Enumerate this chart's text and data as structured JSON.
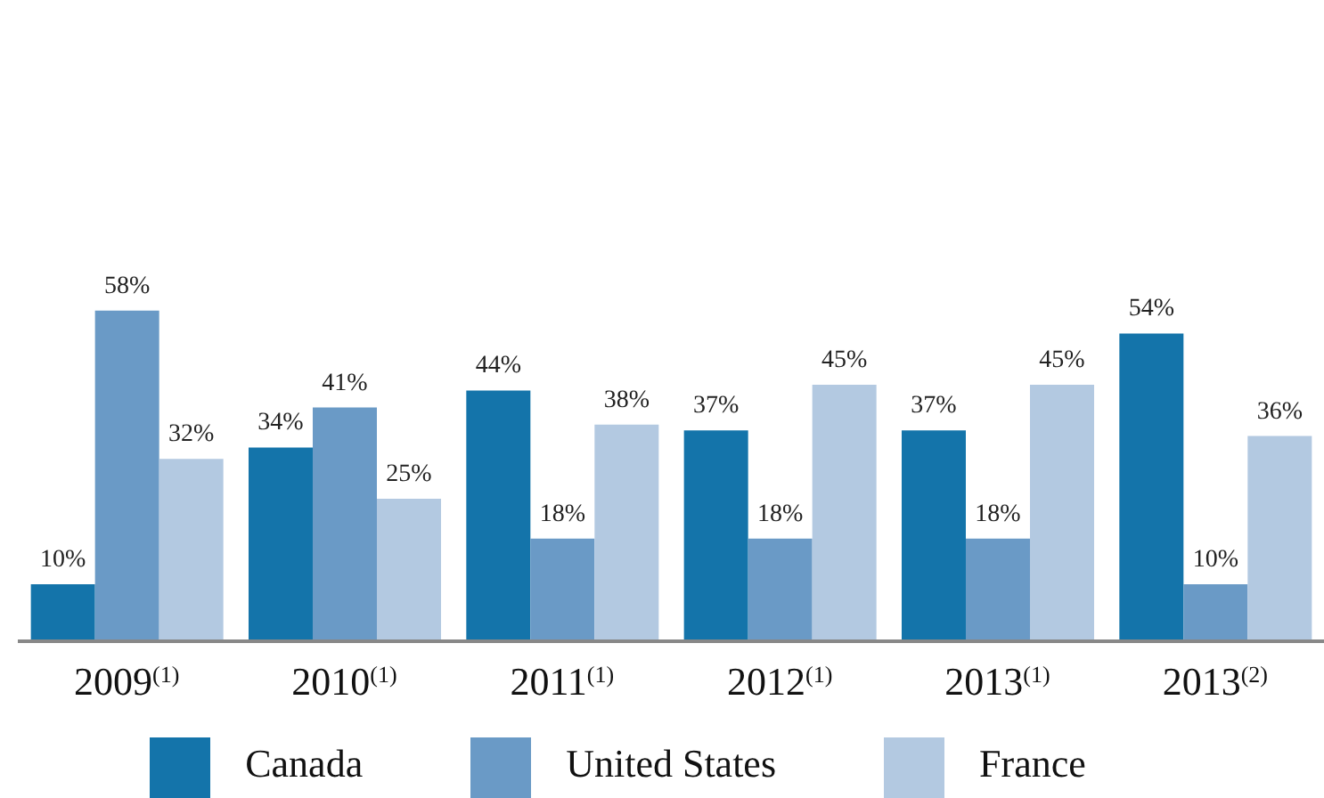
{
  "chart_data": {
    "type": "bar",
    "categories": [
      "2009$^{(1)}$",
      "2010$^{(1)}$",
      "2011$^{(1)}$",
      "2012$^{(1)}$",
      "2013$^{(1)}$",
      "2013$^{(2)}$"
    ],
    "series": [
      {
        "name": "Canada",
        "color": "#1474aa",
        "values": [
          10,
          34,
          44,
          37,
          37,
          54
        ],
        "value_labels": [
          "10%",
          "34%",
          "44%",
          "37%",
          "37%",
          "54%"
        ]
      },
      {
        "name": "United States",
        "color": "#6a9ac6",
        "values": [
          58,
          41,
          18,
          18,
          18,
          10
        ],
        "value_labels": [
          "58%",
          "41%",
          "18%",
          "18%",
          "18%",
          "10%"
        ]
      },
      {
        "name": "France",
        "color": "#b3c9e1",
        "values": [
          32,
          25,
          38,
          45,
          45,
          36
        ],
        "value_labels": [
          "32%",
          "25%",
          "38%",
          "45%",
          "45%",
          "36%"
        ]
      }
    ],
    "tick_labels": "x",
    "grid": false,
    "legend": "bottom"
  }
}
